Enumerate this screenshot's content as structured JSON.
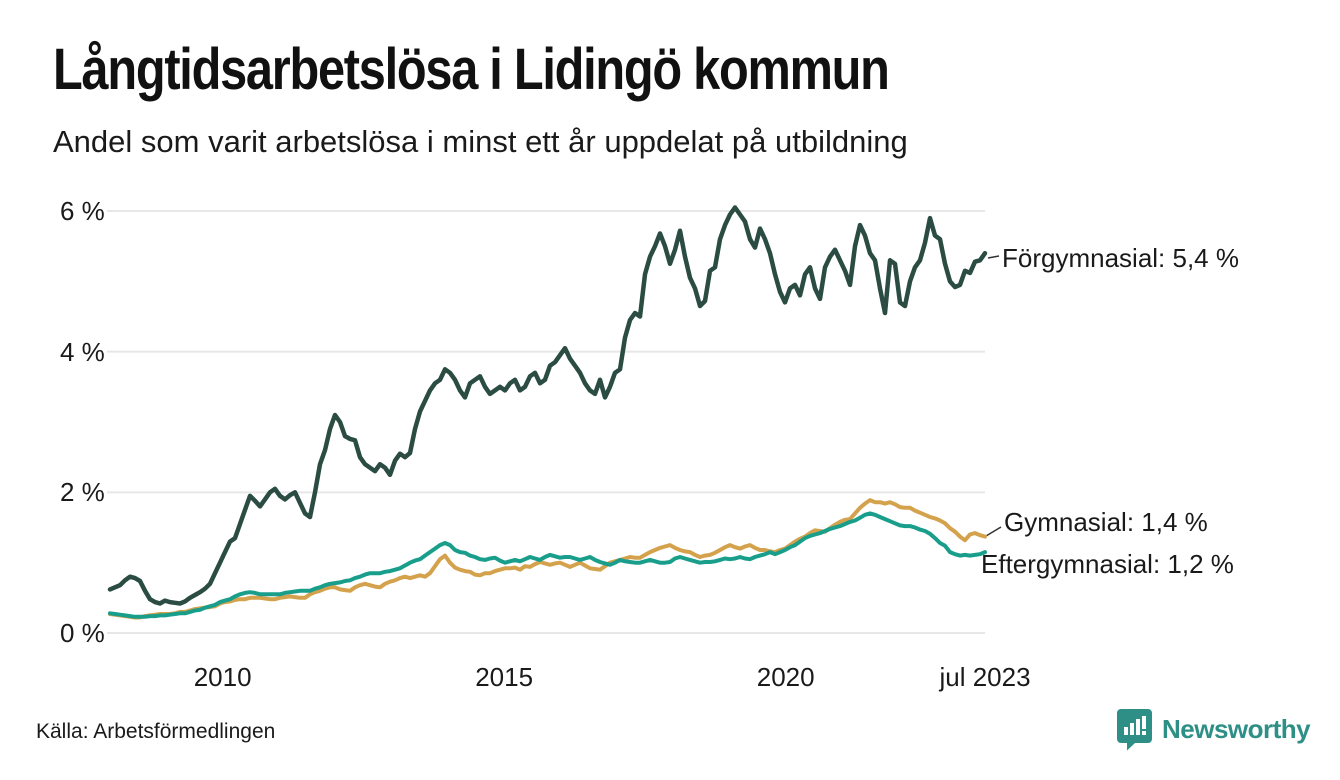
{
  "title": "Långtidsarbetslösa i Lidingö kommun",
  "subtitle": "Andel som varit arbetslösa i minst ett år uppdelat på utbildning",
  "source": "Källa: Arbetsförmedlingen",
  "branding": {
    "name": "Newsworthy",
    "color": "#2e8f86",
    "icon": "newsworthy-bar-chart-speech-bubble"
  },
  "chart_data": {
    "type": "line",
    "title": "Långtidsarbetslösa i Lidingö kommun",
    "subtitle": "Andel som varit arbetslösa i minst ett år uppdelat på utbildning",
    "unit": "%",
    "grid": "horizontal",
    "x_axis": {
      "range": [
        2008.0,
        2023.54
      ],
      "ticks": [
        {
          "label": "2010",
          "year": 2010
        },
        {
          "label": "2015",
          "year": 2015
        },
        {
          "label": "2020",
          "year": 2020
        },
        {
          "label": "jul 2023",
          "year": 2023.54
        }
      ]
    },
    "y_axis": {
      "range": [
        0,
        6.2
      ],
      "ticks": [
        {
          "label": "6 %",
          "value": 6
        },
        {
          "label": "4 %",
          "value": 4
        },
        {
          "label": "2 %",
          "value": 2
        },
        {
          "label": "0 %",
          "value": 0
        }
      ]
    },
    "series": [
      {
        "name": "Förgymnasial",
        "end_label": "Förgymnasial: 5,4 %",
        "end_value": "5,4 %",
        "color": "#2b4c43",
        "stroke_width": 4.5,
        "start_year": 2008.0,
        "end_year": 2023.54,
        "values": [
          0.62,
          0.65,
          0.68,
          0.75,
          0.8,
          0.78,
          0.74,
          0.6,
          0.48,
          0.44,
          0.42,
          0.46,
          0.44,
          0.43,
          0.42,
          0.45,
          0.5,
          0.54,
          0.58,
          0.63,
          0.7,
          0.85,
          1.0,
          1.15,
          1.3,
          1.35,
          1.55,
          1.75,
          1.95,
          1.88,
          1.8,
          1.9,
          2.0,
          2.05,
          1.95,
          1.9,
          1.96,
          2.0,
          1.85,
          1.7,
          1.65,
          2.0,
          2.4,
          2.6,
          2.9,
          3.1,
          3.0,
          2.8,
          2.76,
          2.74,
          2.5,
          2.4,
          2.35,
          2.3,
          2.4,
          2.35,
          2.25,
          2.45,
          2.55,
          2.5,
          2.56,
          2.9,
          3.15,
          3.3,
          3.45,
          3.55,
          3.6,
          3.75,
          3.7,
          3.6,
          3.45,
          3.35,
          3.55,
          3.6,
          3.65,
          3.5,
          3.4,
          3.45,
          3.5,
          3.45,
          3.55,
          3.6,
          3.45,
          3.5,
          3.65,
          3.7,
          3.55,
          3.6,
          3.8,
          3.85,
          3.95,
          4.05,
          3.9,
          3.8,
          3.7,
          3.55,
          3.45,
          3.4,
          3.6,
          3.35,
          3.5,
          3.7,
          3.75,
          4.2,
          4.45,
          4.55,
          4.5,
          5.1,
          5.35,
          5.5,
          5.68,
          5.5,
          5.25,
          5.45,
          5.72,
          5.35,
          5.05,
          4.9,
          4.65,
          4.72,
          5.15,
          5.2,
          5.6,
          5.8,
          5.95,
          6.05,
          5.95,
          5.85,
          5.6,
          5.48,
          5.75,
          5.6,
          5.4,
          5.1,
          4.85,
          4.7,
          4.9,
          4.95,
          4.8,
          5.1,
          5.2,
          4.9,
          4.75,
          5.2,
          5.35,
          5.45,
          5.3,
          5.15,
          4.95,
          5.5,
          5.8,
          5.65,
          5.4,
          5.3,
          4.9,
          4.55,
          5.3,
          5.25,
          4.7,
          4.65,
          5.0,
          5.2,
          5.3,
          5.55,
          5.9,
          5.65,
          5.6,
          5.25,
          5.0,
          4.92,
          4.95,
          5.15,
          5.12,
          5.28,
          5.3,
          5.4
        ]
      },
      {
        "name": "Gymnasial",
        "end_label": "Gymnasial: 1,4 %",
        "end_value": "1,4 %",
        "color": "#d4a24c",
        "stroke_width": 4,
        "start_year": 2008.0,
        "end_year": 2023.54,
        "values": [
          0.27,
          0.26,
          0.25,
          0.24,
          0.23,
          0.22,
          0.22,
          0.24,
          0.25,
          0.26,
          0.27,
          0.27,
          0.27,
          0.28,
          0.3,
          0.3,
          0.32,
          0.34,
          0.35,
          0.36,
          0.37,
          0.38,
          0.42,
          0.44,
          0.45,
          0.47,
          0.48,
          0.48,
          0.5,
          0.5,
          0.5,
          0.49,
          0.48,
          0.48,
          0.5,
          0.51,
          0.52,
          0.51,
          0.5,
          0.5,
          0.55,
          0.58,
          0.6,
          0.63,
          0.65,
          0.65,
          0.62,
          0.61,
          0.6,
          0.65,
          0.68,
          0.7,
          0.68,
          0.66,
          0.65,
          0.7,
          0.73,
          0.75,
          0.78,
          0.8,
          0.78,
          0.8,
          0.82,
          0.8,
          0.85,
          0.95,
          1.05,
          1.1,
          1.0,
          0.93,
          0.9,
          0.88,
          0.87,
          0.83,
          0.82,
          0.85,
          0.85,
          0.88,
          0.9,
          0.92,
          0.92,
          0.93,
          0.9,
          0.95,
          0.94,
          0.98,
          1.01,
          0.99,
          0.97,
          0.99,
          1.0,
          0.97,
          0.94,
          0.97,
          1.0,
          0.96,
          0.92,
          0.91,
          0.9,
          0.95,
          1.0,
          1.02,
          1.04,
          1.06,
          1.08,
          1.07,
          1.07,
          1.11,
          1.15,
          1.18,
          1.21,
          1.23,
          1.25,
          1.21,
          1.18,
          1.16,
          1.15,
          1.11,
          1.08,
          1.1,
          1.11,
          1.14,
          1.18,
          1.22,
          1.25,
          1.22,
          1.2,
          1.23,
          1.25,
          1.21,
          1.18,
          1.18,
          1.16,
          1.15,
          1.18,
          1.2,
          1.25,
          1.3,
          1.34,
          1.37,
          1.42,
          1.46,
          1.45,
          1.44,
          1.49,
          1.54,
          1.58,
          1.61,
          1.62,
          1.7,
          1.78,
          1.84,
          1.89,
          1.86,
          1.86,
          1.84,
          1.86,
          1.83,
          1.79,
          1.78,
          1.78,
          1.74,
          1.71,
          1.68,
          1.65,
          1.63,
          1.6,
          1.56,
          1.49,
          1.44,
          1.37,
          1.32,
          1.4,
          1.42,
          1.39,
          1.37
        ]
      },
      {
        "name": "Eftergymnasial",
        "end_label": "Eftergymnasial: 1,2 %",
        "end_value": "1,2 %",
        "color": "#189e8a",
        "stroke_width": 4,
        "start_year": 2008.0,
        "end_year": 2023.54,
        "values": [
          0.28,
          0.27,
          0.26,
          0.25,
          0.24,
          0.23,
          0.23,
          0.23,
          0.24,
          0.24,
          0.25,
          0.25,
          0.26,
          0.27,
          0.28,
          0.28,
          0.3,
          0.32,
          0.33,
          0.36,
          0.38,
          0.4,
          0.44,
          0.46,
          0.48,
          0.52,
          0.55,
          0.57,
          0.58,
          0.57,
          0.55,
          0.55,
          0.55,
          0.55,
          0.55,
          0.57,
          0.58,
          0.59,
          0.6,
          0.6,
          0.6,
          0.63,
          0.65,
          0.68,
          0.7,
          0.71,
          0.72,
          0.74,
          0.75,
          0.78,
          0.8,
          0.83,
          0.85,
          0.85,
          0.85,
          0.87,
          0.88,
          0.9,
          0.92,
          0.96,
          1.0,
          1.03,
          1.05,
          1.1,
          1.15,
          1.2,
          1.25,
          1.28,
          1.25,
          1.18,
          1.15,
          1.14,
          1.1,
          1.08,
          1.05,
          1.04,
          1.06,
          1.07,
          1.03,
          1.0,
          1.02,
          1.04,
          1.02,
          1.05,
          1.08,
          1.06,
          1.04,
          1.08,
          1.11,
          1.09,
          1.07,
          1.08,
          1.08,
          1.06,
          1.04,
          1.06,
          1.08,
          1.04,
          1.01,
          0.99,
          0.97,
          1.0,
          1.04,
          1.02,
          1.01,
          1.0,
          1.0,
          1.02,
          1.04,
          1.02,
          1.0,
          1.0,
          1.01,
          1.06,
          1.08,
          1.06,
          1.04,
          1.02,
          1.0,
          1.01,
          1.01,
          1.02,
          1.04,
          1.06,
          1.05,
          1.06,
          1.08,
          1.06,
          1.05,
          1.08,
          1.1,
          1.12,
          1.15,
          1.12,
          1.15,
          1.18,
          1.22,
          1.25,
          1.3,
          1.35,
          1.38,
          1.4,
          1.42,
          1.45,
          1.48,
          1.5,
          1.52,
          1.55,
          1.58,
          1.6,
          1.64,
          1.68,
          1.7,
          1.68,
          1.65,
          1.62,
          1.59,
          1.56,
          1.53,
          1.52,
          1.52,
          1.5,
          1.47,
          1.45,
          1.41,
          1.35,
          1.28,
          1.24,
          1.15,
          1.12,
          1.1,
          1.11,
          1.1,
          1.11,
          1.12,
          1.15
        ]
      }
    ]
  }
}
